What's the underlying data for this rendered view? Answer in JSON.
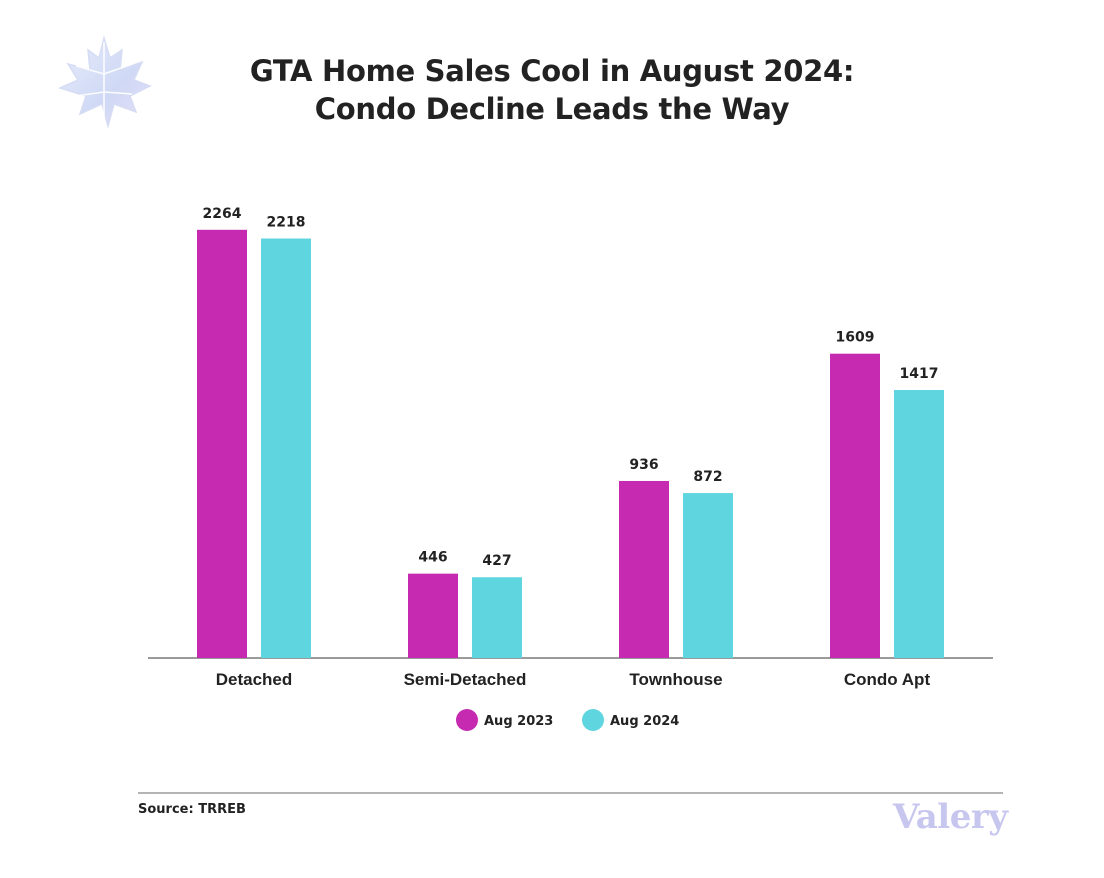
{
  "header": {
    "title_line1": "GTA Home Sales Cool in August 2024:",
    "title_line2": "Condo Decline Leads the Way"
  },
  "logo": {
    "icon": "maple-leaf-icon"
  },
  "chart_data": {
    "type": "bar",
    "title": "GTA Home Sales Cool in August 2024: Condo Decline Leads the Way",
    "xlabel": "",
    "ylabel": "",
    "categories": [
      "Detached",
      "Semi-Detached",
      "Townhouse",
      "Condo Apt"
    ],
    "series": [
      {
        "name": "Aug 2023",
        "color": "#c52ab1",
        "values": [
          2264,
          446,
          936,
          1609
        ]
      },
      {
        "name": "Aug 2024",
        "color": "#5fd6df",
        "values": [
          2218,
          427,
          872,
          1417
        ]
      }
    ],
    "ylim": [
      0,
      2300
    ],
    "grid": false,
    "legend": "bottom-center"
  },
  "footer": {
    "source": "Source: TRREB",
    "brand": "Valery"
  }
}
